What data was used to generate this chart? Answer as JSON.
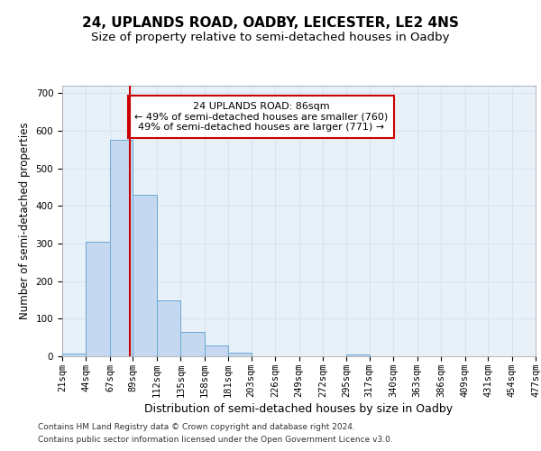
{
  "title": "24, UPLANDS ROAD, OADBY, LEICESTER, LE2 4NS",
  "subtitle": "Size of property relative to semi-detached houses in Oadby",
  "xlabel": "Distribution of semi-detached houses by size in Oadby",
  "ylabel": "Number of semi-detached properties",
  "footer_line1": "Contains HM Land Registry data © Crown copyright and database right 2024.",
  "footer_line2": "Contains public sector information licensed under the Open Government Licence v3.0.",
  "annotation_line1": "24 UPLANDS ROAD: 86sqm",
  "annotation_line2": "← 49% of semi-detached houses are smaller (760)",
  "annotation_line3": "49% of semi-detached houses are larger (771) →",
  "property_size": 86,
  "bin_edges": [
    21,
    44,
    67,
    89,
    112,
    135,
    158,
    181,
    203,
    226,
    249,
    272,
    295,
    317,
    340,
    363,
    386,
    409,
    431,
    454,
    477
  ],
  "bar_values": [
    8,
    305,
    575,
    430,
    150,
    65,
    28,
    10,
    0,
    0,
    0,
    0,
    5,
    0,
    0,
    0,
    0,
    0,
    0,
    0
  ],
  "bar_color": "#c5d8f0",
  "bar_edge_color": "#6aaad4",
  "grid_color": "#d8e4f0",
  "background_color": "#e8f0f8",
  "vline_color": "#cc0000",
  "ylim": [
    0,
    720
  ],
  "yticks": [
    0,
    100,
    200,
    300,
    400,
    500,
    600,
    700
  ],
  "title_fontsize": 11,
  "subtitle_fontsize": 9.5,
  "xlabel_fontsize": 9,
  "ylabel_fontsize": 8.5,
  "tick_fontsize": 7.5,
  "annotation_fontsize": 8,
  "footer_fontsize": 6.5
}
